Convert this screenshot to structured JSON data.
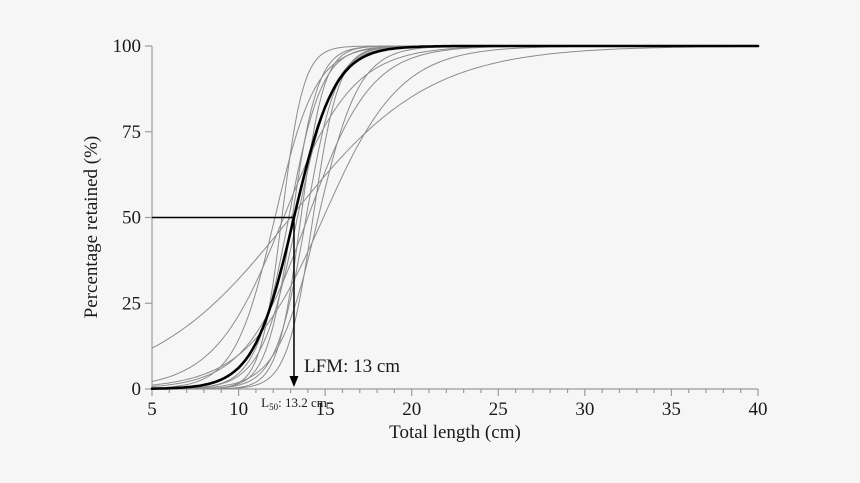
{
  "figure": {
    "background": "#f6f6f6",
    "text_color": "#1a1a1a",
    "axis_color": "#9b9b9b",
    "individual_curve_color": "#8c8c8c",
    "mean_curve_color": "#000000",
    "reference_line_color": "#000000"
  },
  "chart_data": {
    "type": "line",
    "title": "",
    "xlabel": "Total length (cm)",
    "ylabel": "Percentage retained (%)",
    "xlim": [
      5,
      40
    ],
    "ylim": [
      0,
      100
    ],
    "x_ticks_major": [
      5,
      10,
      15,
      20,
      25,
      30,
      35,
      40
    ],
    "x_minor_tick_step_cm": 1,
    "y_ticks": [
      0,
      25,
      50,
      75,
      100
    ],
    "grid": false,
    "legend": false,
    "model": "logistic retention: y = 100 / (1 + exp(-k * (x - L50)))",
    "series": [
      {
        "name": "mean-selectivity-curve",
        "role": "mean",
        "L50": 13.2,
        "k": 0.85
      },
      {
        "name": "individual-curve-1",
        "role": "individual",
        "L50": 12.5,
        "k": 1.6
      },
      {
        "name": "individual-curve-2",
        "role": "individual",
        "L50": 12.9,
        "k": 1.05
      },
      {
        "name": "individual-curve-3",
        "role": "individual",
        "L50": 13.1,
        "k": 1.35
      },
      {
        "name": "individual-curve-4",
        "role": "individual",
        "L50": 13.4,
        "k": 0.95
      },
      {
        "name": "individual-curve-5",
        "role": "individual",
        "L50": 13.6,
        "k": 1.5
      },
      {
        "name": "individual-curve-6",
        "role": "individual",
        "L50": 13.9,
        "k": 1.15
      },
      {
        "name": "individual-curve-7",
        "role": "individual",
        "L50": 14.3,
        "k": 1.35
      },
      {
        "name": "individual-curve-8",
        "role": "individual",
        "L50": 14.6,
        "k": 0.85
      },
      {
        "name": "individual-curve-9",
        "role": "individual",
        "L50": 12.1,
        "k": 0.85
      },
      {
        "name": "individual-curve-10",
        "role": "individual",
        "L50": 13.0,
        "k": 0.25
      },
      {
        "name": "individual-curve-11",
        "role": "individual",
        "L50": 14.9,
        "k": 0.45
      },
      {
        "name": "individual-curve-12",
        "role": "individual",
        "L50": 12.6,
        "k": 0.5
      },
      {
        "name": "individual-curve-13",
        "role": "individual",
        "L50": 14.0,
        "k": 0.55
      }
    ],
    "annotations": {
      "reference_percent": 50,
      "reference_length_cm": 13.2,
      "lfm_label": "LFM: 13 cm",
      "l50_label_prefix": "L",
      "l50_label_sub": "50",
      "l50_label_rest": ": 13.2 cm"
    }
  }
}
